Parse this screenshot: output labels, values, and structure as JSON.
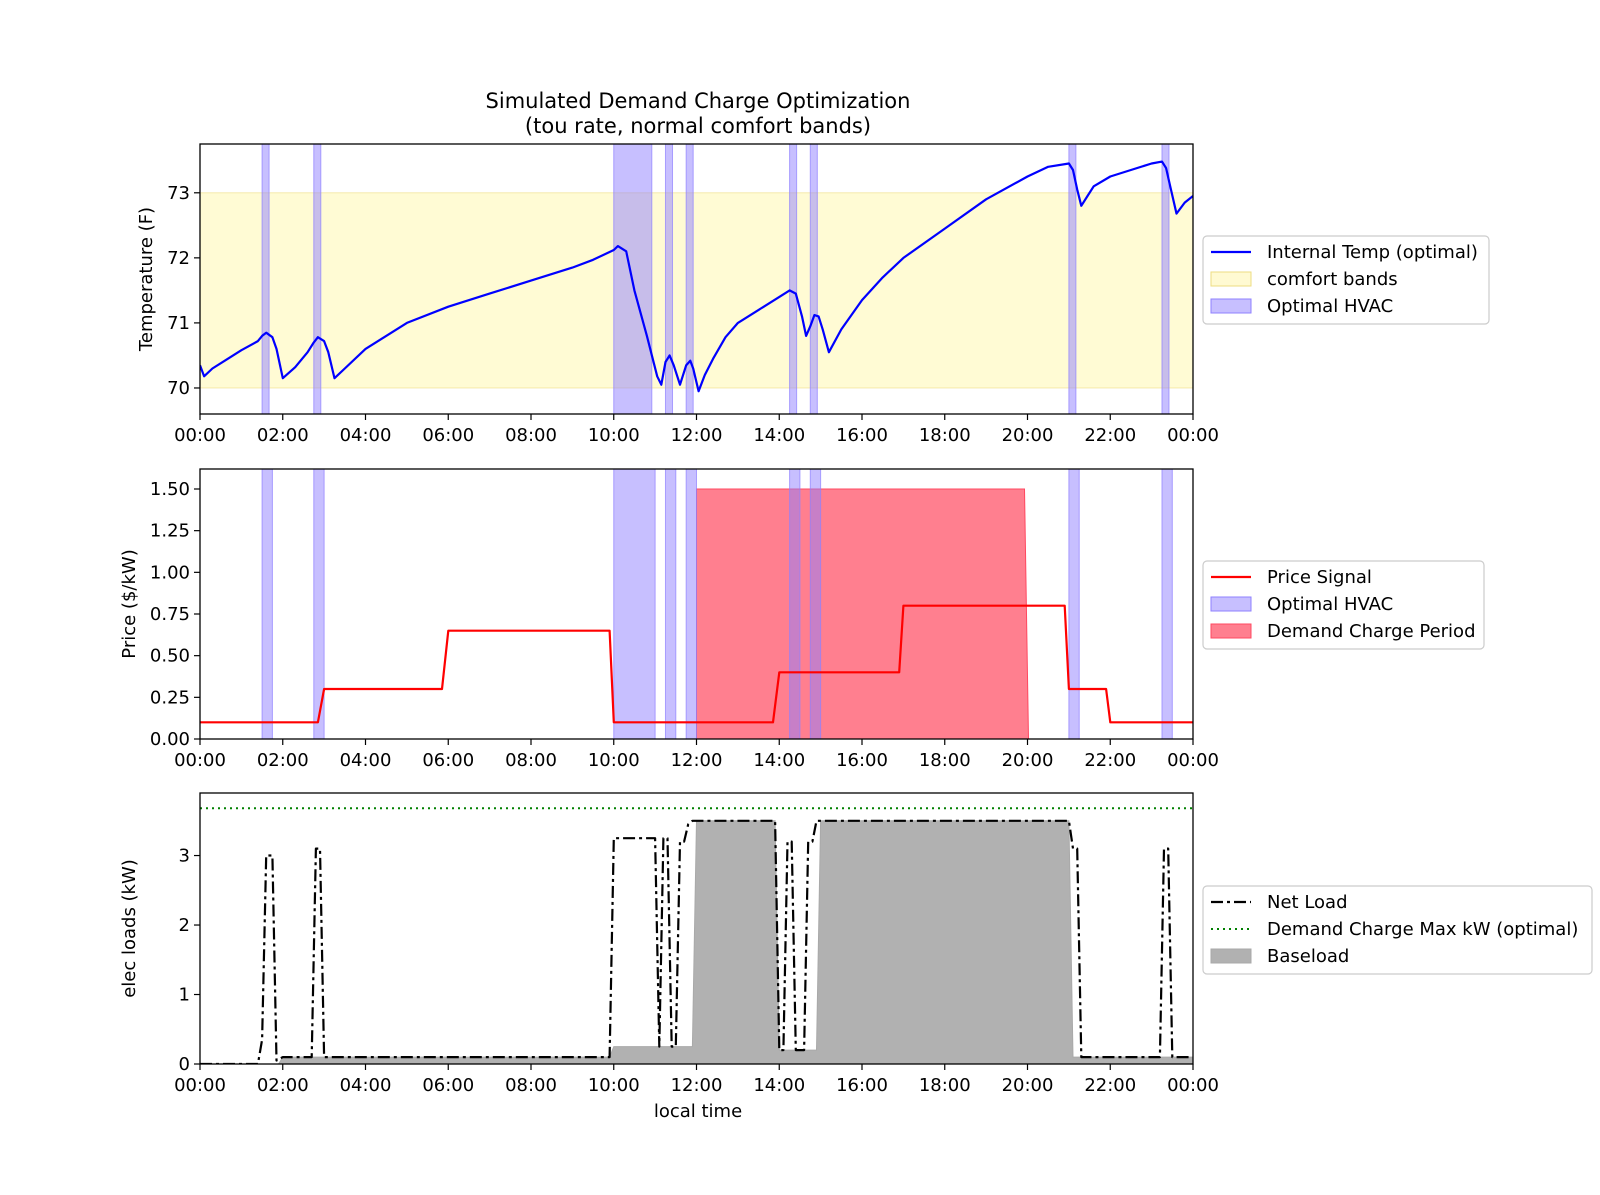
{
  "title": "Simulated Demand Charge Optimization",
  "subtitle": "(tou rate, normal comfort bands)",
  "xlabel": "local time",
  "x_ticks": [
    "00:00",
    "02:00",
    "04:00",
    "06:00",
    "08:00",
    "10:00",
    "12:00",
    "14:00",
    "16:00",
    "18:00",
    "20:00",
    "22:00",
    "00:00"
  ],
  "colors": {
    "temp": "#0000ff",
    "comfort": "#fffacd",
    "hvac": "#8f80ff",
    "price": "#ff0000",
    "demand": "#ff4860",
    "netload": "#000000",
    "maxkw": "#008000",
    "baseload": "#a9a9a9"
  },
  "chart_data": [
    {
      "type": "line",
      "ylabel": "Temperature (F)",
      "xlim": [
        0,
        24
      ],
      "ylim": [
        69.6,
        73.75
      ],
      "y_ticks": [
        70,
        71,
        72,
        73
      ],
      "legend_position": "right",
      "legend": [
        "Internal Temp (optimal)",
        "comfort bands",
        "Optimal HVAC"
      ],
      "comfort_band": [
        70,
        73
      ],
      "hvac_intervals": [
        [
          1.5,
          1.67
        ],
        [
          2.75,
          2.92
        ],
        [
          10.0,
          10.92
        ],
        [
          11.25,
          11.42
        ],
        [
          11.75,
          11.92
        ],
        [
          14.25,
          14.42
        ],
        [
          14.75,
          14.92
        ],
        [
          21.0,
          21.17
        ],
        [
          23.25,
          23.42
        ]
      ],
      "series": [
        {
          "name": "Internal Temp (optimal)",
          "x": [
            0,
            0.1,
            0.3,
            0.6,
            1.0,
            1.4,
            1.5,
            1.6,
            1.75,
            1.85,
            2.0,
            2.3,
            2.6,
            2.75,
            2.85,
            3.0,
            3.1,
            3.25,
            3.5,
            4.0,
            4.5,
            5.0,
            6.0,
            7.0,
            8.0,
            9.0,
            9.5,
            10.0,
            10.1,
            10.3,
            10.5,
            10.8,
            11.05,
            11.15,
            11.25,
            11.35,
            11.45,
            11.6,
            11.75,
            11.85,
            11.92,
            12.05,
            12.2,
            12.4,
            12.7,
            13.0,
            13.5,
            14.0,
            14.25,
            14.4,
            14.55,
            14.65,
            14.75,
            14.85,
            14.95,
            15.05,
            15.2,
            15.5,
            16.0,
            16.5,
            17.0,
            18.0,
            19.0,
            20.0,
            20.5,
            21.0,
            21.1,
            21.2,
            21.3,
            21.45,
            21.6,
            22.0,
            22.5,
            23.0,
            23.25,
            23.35,
            23.45,
            23.6,
            23.8,
            24.0
          ],
          "y": [
            70.35,
            70.18,
            70.3,
            70.42,
            70.58,
            70.72,
            70.8,
            70.85,
            70.78,
            70.6,
            70.15,
            70.32,
            70.55,
            70.7,
            70.78,
            70.72,
            70.55,
            70.15,
            70.3,
            70.6,
            70.8,
            71.0,
            71.25,
            71.45,
            71.65,
            71.85,
            71.97,
            72.12,
            72.18,
            72.1,
            71.5,
            70.8,
            70.18,
            70.05,
            70.4,
            70.5,
            70.35,
            70.05,
            70.35,
            70.42,
            70.3,
            69.95,
            70.2,
            70.45,
            70.78,
            71.0,
            71.2,
            71.4,
            71.5,
            71.45,
            71.1,
            70.8,
            70.95,
            71.12,
            71.1,
            70.9,
            70.55,
            70.9,
            71.35,
            71.7,
            72.0,
            72.45,
            72.9,
            73.25,
            73.4,
            73.45,
            73.35,
            73.05,
            72.8,
            72.95,
            73.1,
            73.25,
            73.35,
            73.45,
            73.48,
            73.38,
            73.1,
            72.68,
            72.85,
            72.95
          ]
        }
      ]
    },
    {
      "type": "line",
      "ylabel": "Price ($/kW)",
      "xlim": [
        0,
        24
      ],
      "ylim": [
        0,
        1.62
      ],
      "y_ticks": [
        "0.00",
        "0.25",
        "0.50",
        "0.75",
        "1.00",
        "1.25",
        "1.50"
      ],
      "legend_position": "right",
      "legend": [
        "Price Signal",
        "Optimal HVAC",
        "Demand Charge Period"
      ],
      "hvac_intervals": [
        [
          1.5,
          1.75
        ],
        [
          2.75,
          3.0
        ],
        [
          10.0,
          11.0
        ],
        [
          11.25,
          11.5
        ],
        [
          11.75,
          12.0
        ],
        [
          14.25,
          14.5
        ],
        [
          14.75,
          15.0
        ],
        [
          21.0,
          21.25
        ],
        [
          23.25,
          23.5
        ]
      ],
      "demand_charge_period": {
        "x_start": 12.0,
        "x_end": 20.0,
        "value": 1.5
      },
      "series": [
        {
          "name": "Price Signal",
          "x": [
            0,
            2.85,
            3.0,
            5.85,
            6.0,
            9.9,
            10.0,
            13.85,
            14.0,
            16.9,
            17.0,
            20.9,
            21.0,
            21.9,
            22.0,
            24.0
          ],
          "y": [
            0.1,
            0.1,
            0.3,
            0.3,
            0.65,
            0.65,
            0.1,
            0.1,
            0.4,
            0.4,
            0.8,
            0.8,
            0.3,
            0.3,
            0.1,
            0.1
          ]
        }
      ]
    },
    {
      "type": "line",
      "ylabel": "elec loads (kW)",
      "xlim": [
        0,
        24
      ],
      "ylim": [
        0,
        3.9
      ],
      "y_ticks": [
        0,
        1,
        2,
        3
      ],
      "legend_position": "right",
      "legend": [
        "Net Load",
        "Demand Charge Max kW (optimal)",
        "Baseload"
      ],
      "demand_charge_max_kw": 3.68,
      "series": [
        {
          "name": "Net Load",
          "x": [
            0,
            1.4,
            1.5,
            1.6,
            1.75,
            1.85,
            2.0,
            2.7,
            2.8,
            2.9,
            3.0,
            3.1,
            4.0,
            6.0,
            8.0,
            9.9,
            10.0,
            10.1,
            10.9,
            11.0,
            11.1,
            11.2,
            11.3,
            11.4,
            11.5,
            11.6,
            11.7,
            11.8,
            11.9,
            12.0,
            13.5,
            13.9,
            14.0,
            14.1,
            14.2,
            14.3,
            14.4,
            14.5,
            14.6,
            14.7,
            14.8,
            14.9,
            15.0,
            16.0,
            18.0,
            20.0,
            20.9,
            21.0,
            21.1,
            21.2,
            21.3,
            21.4,
            22.0,
            23.0,
            23.2,
            23.3,
            23.4,
            23.5,
            24.0
          ],
          "y": [
            0,
            0,
            0.35,
            3.0,
            3.0,
            0.05,
            0.1,
            0.1,
            3.1,
            3.1,
            0.1,
            0.1,
            0.1,
            0.1,
            0.1,
            0.1,
            3.25,
            3.25,
            3.25,
            3.25,
            0.25,
            3.25,
            3.25,
            0.25,
            0.25,
            3.2,
            3.2,
            3.45,
            3.5,
            3.5,
            3.5,
            3.5,
            0.2,
            0.2,
            3.2,
            3.2,
            0.2,
            0.2,
            0.2,
            3.2,
            3.2,
            3.5,
            3.5,
            3.5,
            3.5,
            3.5,
            3.5,
            3.5,
            3.1,
            3.1,
            0.1,
            0.1,
            0.1,
            0.1,
            0.1,
            3.1,
            3.1,
            0.1,
            0.1
          ]
        },
        {
          "name": "Baseload",
          "x": [
            0,
            1.9,
            2.0,
            9.9,
            10.0,
            11.9,
            12.0,
            13.9,
            14.0,
            14.9,
            15.0,
            20.9,
            21.0,
            21.1,
            24.0
          ],
          "y": [
            0,
            0,
            0.1,
            0.1,
            0.25,
            0.25,
            3.5,
            3.5,
            0.2,
            0.2,
            3.5,
            3.5,
            3.5,
            0.1,
            0.1
          ]
        }
      ]
    }
  ]
}
